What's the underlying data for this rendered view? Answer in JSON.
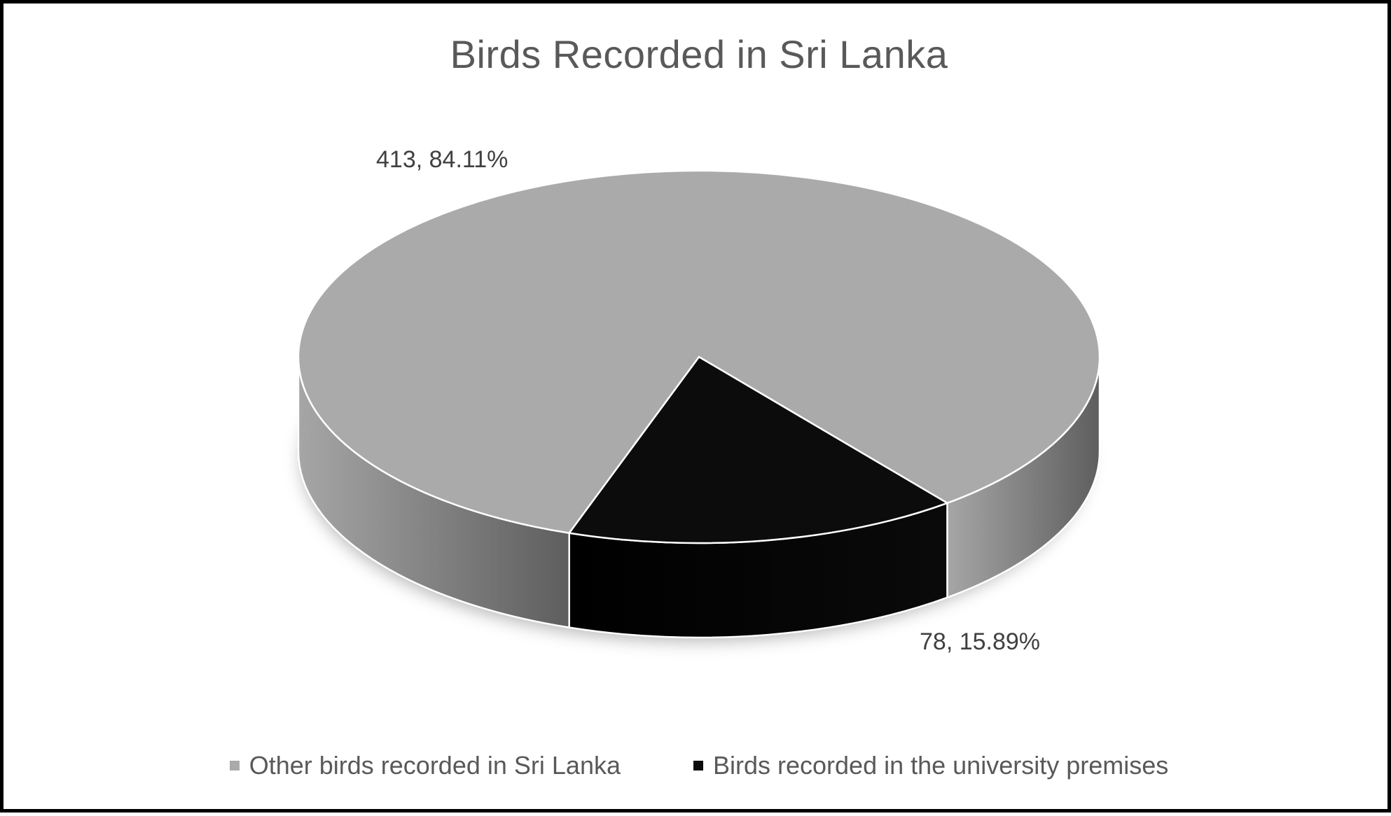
{
  "chart_data": {
    "type": "pie",
    "title": "Birds Recorded in Sri Lanka",
    "three_d": true,
    "legend_position": "bottom",
    "slices": [
      {
        "name": "Other birds recorded in Sri Lanka",
        "value": 413,
        "percent": 84.11,
        "label": "413, 84.11%",
        "color": "#aaaaaa"
      },
      {
        "name": "Birds recorded in the university premises",
        "value": 78,
        "percent": 15.89,
        "label": "78, 15.89%",
        "color": "#0c0c0c"
      }
    ]
  },
  "colors": {
    "other_top": "#aaaaaa",
    "university_top": "#0c0c0c",
    "outline": "#ffffff",
    "frame": "#000000",
    "title_text": "#595959"
  }
}
